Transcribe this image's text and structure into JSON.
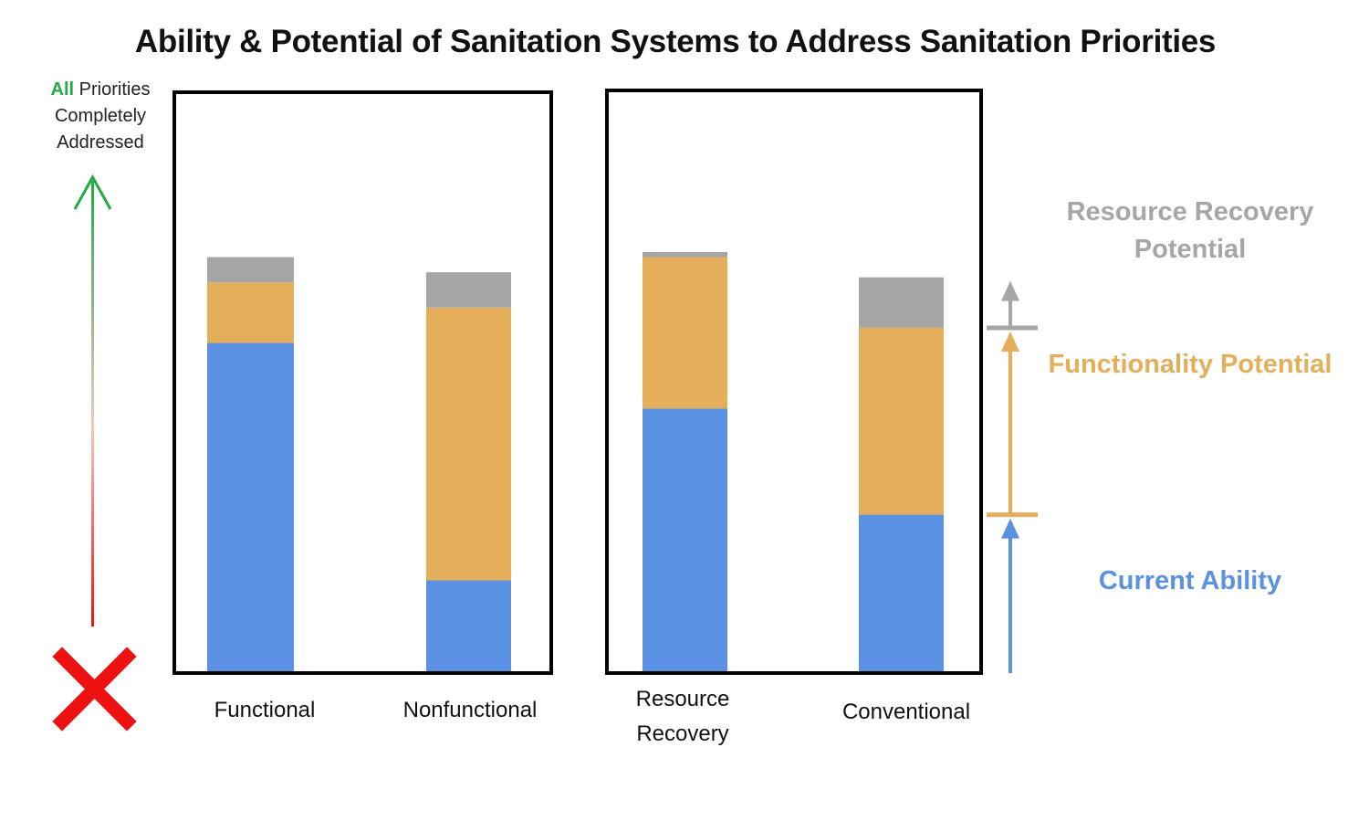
{
  "title": "Ability & Potential of Sanitation Systems to Address Sanitation Priorities",
  "y_axis": {
    "top_label_highlight": "All",
    "top_label_rest": "Priorities Completely Addressed",
    "bottom_marker": "x-mark-icon"
  },
  "colors": {
    "current": "#5B91E2",
    "functionality": "#E4AE5A",
    "resource": "#A6A6A6",
    "arrow_top": "#22aa44",
    "arrow_bottom": "#ee1111",
    "marker": "#ee1111"
  },
  "legend": {
    "resource_label": "Resource Recovery Potential",
    "functionality_label": "Functionality Potential",
    "current_label": "Current Ability"
  },
  "chart_data": {
    "type": "bar",
    "stacked": true,
    "title": "Ability & Potential of Sanitation Systems to Address Sanitation Priorities",
    "ylim": [
      0,
      100
    ],
    "groups": [
      {
        "categories": [
          "Functional",
          "Nonfunctional"
        ],
        "category_labels": [
          "Functional",
          "Nonfunctional"
        ]
      },
      {
        "categories": [
          "Resource Recovery",
          "Conventional"
        ],
        "category_labels": [
          "Resource Recovery",
          "Conventional"
        ]
      }
    ],
    "categories": [
      "Functional",
      "Nonfunctional",
      "Resource Recovery",
      "Conventional"
    ],
    "series": [
      {
        "name": "Current Ability",
        "values": [
          65,
          18,
          52,
          31
        ]
      },
      {
        "name": "Functionality Potential",
        "values": [
          12,
          54,
          30,
          37
        ]
      },
      {
        "name": "Resource Recovery Potential",
        "values": [
          5,
          7,
          1,
          10
        ]
      }
    ]
  }
}
